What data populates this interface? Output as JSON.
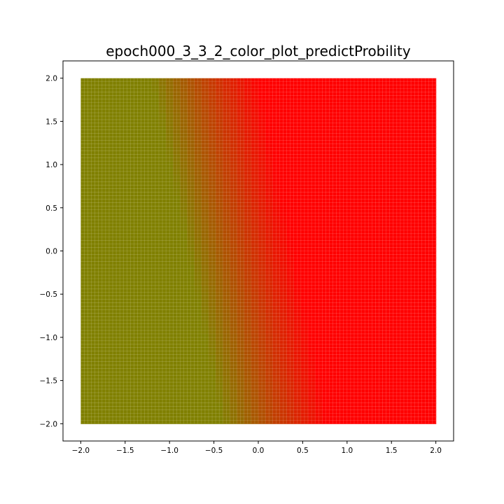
{
  "chart_data": {
    "type": "heatmap",
    "title": "epoch000_3_3_2_color_plot_predictProbility",
    "xlabel": "",
    "ylabel": "",
    "xlim": [
      -2.2,
      2.2
    ],
    "ylim": [
      -2.2,
      2.2
    ],
    "grid": false,
    "legend": "none",
    "x_ticks": [
      -2.0,
      -1.5,
      -1.0,
      -0.5,
      0.0,
      0.5,
      1.0,
      1.5,
      2.0
    ],
    "y_ticks": [
      -2.0,
      -1.5,
      -1.0,
      -0.5,
      0.0,
      0.5,
      1.0,
      1.5,
      2.0
    ],
    "x_tick_labels": [
      "−2.0",
      "−1.5",
      "−1.0",
      "−0.5",
      "0.0",
      "0.5",
      "1.0",
      "1.5",
      "2.0"
    ],
    "y_tick_labels": [
      "−2.0",
      "−1.5",
      "−1.0",
      "−0.5",
      "0.0",
      "0.5",
      "1.0",
      "1.5",
      "2.0"
    ],
    "grid_range": {
      "x": [
        -2.0,
        2.0
      ],
      "y": [
        -2.0,
        2.0
      ],
      "step": 0.04
    },
    "color_map": {
      "low": "#808000",
      "high": "#ff0000"
    },
    "probability_boundary": {
      "x_at_y_min": 0.2,
      "x_at_y_max": -0.6,
      "width": 1.2
    }
  }
}
